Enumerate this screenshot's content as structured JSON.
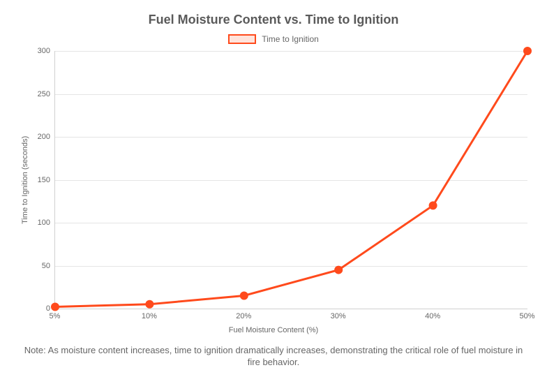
{
  "chart": {
    "type": "line",
    "title": "Fuel Moisture Content vs. Time to Ignition",
    "title_fontsize": 18,
    "title_color": "#5a5a5a",
    "legend": {
      "label": "Time to Ignition",
      "swatch_fill": "#ffe3db",
      "swatch_border": "#ff4a1c",
      "label_fontsize": 12,
      "label_color": "#666666"
    },
    "x": {
      "label": "Fuel Moisture Content (%)",
      "label_fontsize": 11,
      "categories": [
        "5%",
        "10%",
        "20%",
        "30%",
        "40%",
        "50%"
      ],
      "tick_fontsize": 11
    },
    "y": {
      "label": "Time to Ignition (seconds)",
      "label_fontsize": 11,
      "min": 0,
      "max": 300,
      "tick_step": 50,
      "ticks": [
        0,
        50,
        100,
        150,
        200,
        250,
        300
      ],
      "tick_fontsize": 11
    },
    "series": {
      "values": [
        2,
        5,
        15,
        45,
        120,
        300
      ],
      "line_color": "#ff4a1c",
      "line_width": 3,
      "marker_color": "#ff4a1c",
      "marker_radius": 6
    },
    "grid_color": "#e5e5e5",
    "background_color": "#ffffff",
    "note": "Note: As moisture content increases, time to ignition dramatically increases, demonstrating the critical role of fuel moisture in fire behavior.",
    "note_fontsize": 13,
    "note_color": "#666666"
  }
}
